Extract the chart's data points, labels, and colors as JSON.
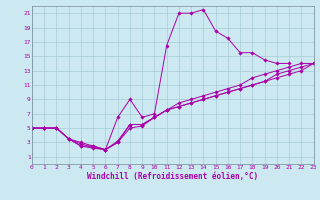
{
  "xlabel": "Windchill (Refroidissement éolien,°C)",
  "bg_color": "#cce8f0",
  "grid_color": "#a8ccd8",
  "line_color": "#aa00aa",
  "xmin": 0,
  "xmax": 23,
  "ymin": 0,
  "ymax": 22,
  "yticks": [
    1,
    3,
    5,
    7,
    9,
    11,
    13,
    15,
    17,
    19,
    21
  ],
  "xticks": [
    0,
    1,
    2,
    3,
    4,
    5,
    6,
    7,
    8,
    9,
    10,
    11,
    12,
    13,
    14,
    15,
    16,
    17,
    18,
    19,
    20,
    21,
    22,
    23
  ],
  "series": [
    {
      "x": [
        0,
        1,
        2,
        3,
        4,
        5,
        6,
        7,
        8,
        9,
        10,
        11,
        12,
        13,
        14,
        15,
        16,
        17,
        18,
        19,
        20,
        21
      ],
      "y": [
        5,
        5,
        5,
        3.5,
        2.5,
        2.5,
        2.0,
        6.5,
        9.0,
        6.5,
        7.0,
        16.5,
        21.0,
        21.0,
        21.5,
        18.5,
        17.5,
        15.5,
        15.5,
        14.5,
        14.0,
        14.0
      ]
    },
    {
      "x": [
        0,
        1,
        2,
        3,
        4,
        5,
        6,
        7,
        8,
        9,
        10,
        11,
        12,
        13,
        14,
        15,
        16,
        17,
        18,
        19,
        20,
        21,
        22,
        23
      ],
      "y": [
        5,
        5,
        5,
        3.5,
        2.8,
        2.3,
        2.0,
        3.2,
        5.5,
        5.5,
        6.5,
        7.5,
        8.5,
        9.0,
        9.5,
        10.0,
        10.5,
        11.0,
        12.0,
        12.5,
        13.0,
        13.5,
        14.0,
        14.0
      ]
    },
    {
      "x": [
        0,
        1,
        2,
        3,
        4,
        5,
        6,
        7,
        8,
        9,
        10,
        11,
        12,
        13,
        14,
        15,
        16,
        17,
        18,
        19,
        20,
        21,
        22,
        23
      ],
      "y": [
        5,
        5,
        5,
        3.5,
        3.0,
        2.5,
        2.0,
        3.0,
        5.5,
        5.5,
        6.5,
        7.5,
        8.0,
        8.5,
        9.0,
        9.5,
        10.0,
        10.5,
        11.0,
        11.5,
        12.5,
        13.0,
        13.5,
        14.0
      ]
    },
    {
      "x": [
        0,
        1,
        2,
        3,
        4,
        5,
        6,
        7,
        8,
        9,
        10,
        11,
        12,
        13,
        14,
        15,
        16,
        17,
        18,
        19,
        20,
        21,
        22,
        23
      ],
      "y": [
        5,
        5,
        5,
        3.5,
        2.5,
        2.2,
        2.0,
        3.0,
        5.0,
        5.3,
        6.5,
        7.5,
        8.0,
        8.5,
        9.0,
        9.5,
        10.0,
        10.5,
        11.0,
        11.5,
        12.0,
        12.5,
        13.0,
        14.0
      ]
    }
  ]
}
